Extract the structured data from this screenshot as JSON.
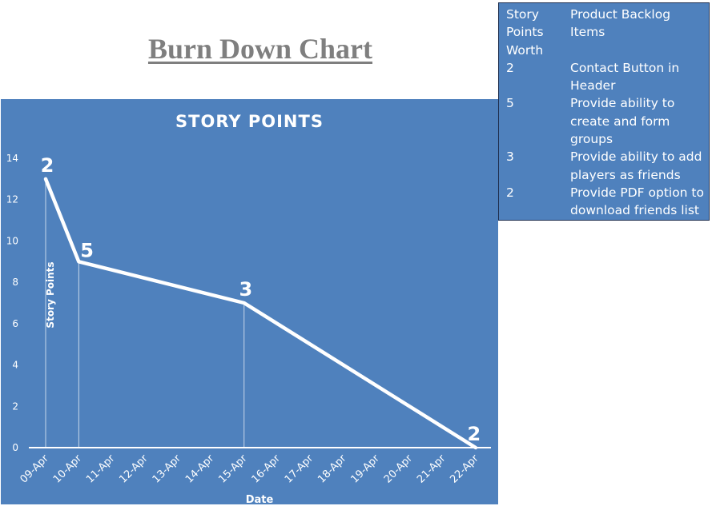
{
  "page_title": "Burn Down Chart",
  "colors": {
    "chart_background": "#4f81bd",
    "line": "#ffffff",
    "title_gray": "#7f7f7f"
  },
  "backlog_table": {
    "headers": [
      "Story Points Worth",
      "Product Backlog Items"
    ],
    "rows": [
      {
        "points": "2",
        "item": "Contact Button in Header"
      },
      {
        "points": "5",
        "item": "Provide ability to create and form groups"
      },
      {
        "points": "3",
        "item": "Provide ability to add players as friends"
      },
      {
        "points": "2",
        "item": "Provide PDF option to download friends list"
      }
    ]
  },
  "chart_data": {
    "type": "line",
    "title": "STORY POINTS",
    "xlabel": "Date",
    "ylabel": "Story Points",
    "categories": [
      "09-Apr",
      "10-Apr",
      "11-Apr",
      "12-Apr",
      "13-Apr",
      "14-Apr",
      "15-Apr",
      "16-Apr",
      "17-Apr",
      "18-Apr",
      "19-Apr",
      "20-Apr",
      "21-Apr",
      "22-Apr"
    ],
    "series": [
      {
        "values": [
          13,
          9,
          null,
          null,
          null,
          null,
          7,
          null,
          null,
          null,
          null,
          null,
          null,
          0
        ]
      }
    ],
    "data_labels": [
      {
        "category": "09-Apr",
        "label": "2"
      },
      {
        "category": "10-Apr",
        "label": "5"
      },
      {
        "category": "15-Apr",
        "label": "3"
      },
      {
        "category": "22-Apr",
        "label": "2"
      }
    ],
    "drop_lines": [
      "09-Apr",
      "10-Apr",
      "15-Apr"
    ],
    "ylim": [
      0,
      14
    ],
    "yticks": [
      0,
      2,
      4,
      6,
      8,
      10,
      12,
      14
    ],
    "grid": false,
    "legend": "none"
  }
}
